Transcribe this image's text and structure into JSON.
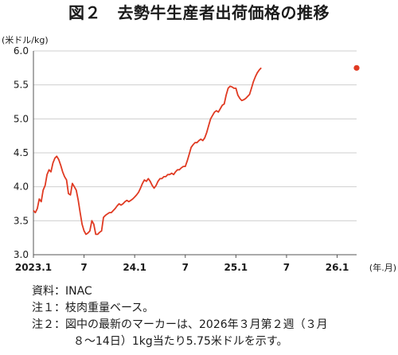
{
  "title": "図２　去勢牛生産者出荷価格の推移",
  "notes": {
    "source_label": "資料：",
    "source_text": "INAC",
    "note1_label": "注１：",
    "note1_text": "枝肉重量ベース。",
    "note2_label": "注２：",
    "note2_text": "図中の最新のマーカーは、2026年３月第２週（３月",
    "note2_cont": "８～14日）1kg当たり5.75米ドルを示す。"
  },
  "chart_data": {
    "type": "line",
    "title": "図２　去勢牛生産者出荷価格の推移",
    "xlabel": "(年.月)",
    "ylabel": "(米ドル/kg)",
    "ylim": [
      3.0,
      6.0
    ],
    "y_ticks": [
      "3.0",
      "3.5",
      "4.0",
      "4.5",
      "5.0",
      "5.5",
      "6.0"
    ],
    "x_unit": "weeks since 2023.1",
    "xlim": [
      0,
      166
    ],
    "x_ticks": [
      {
        "label": "2023.1",
        "x": 0
      },
      {
        "label": "7",
        "x": 26
      },
      {
        "label": "24.1",
        "x": 52
      },
      {
        "label": "7",
        "x": 78
      },
      {
        "label": "25.1",
        "x": 104
      },
      {
        "label": "7",
        "x": 130
      },
      {
        "label": "26.1",
        "x": 156
      }
    ],
    "grid": "horizontal",
    "line_color": "#e03a22",
    "marker": {
      "x": 166,
      "y": 5.75,
      "color": "#e03a22"
    },
    "series": [
      {
        "values": [
          [
            0,
            3.65
          ],
          [
            1,
            3.62
          ],
          [
            2,
            3.68
          ],
          [
            3,
            3.82
          ],
          [
            4,
            3.78
          ],
          [
            5,
            3.95
          ],
          [
            6,
            4.02
          ],
          [
            7,
            4.18
          ],
          [
            8,
            4.25
          ],
          [
            9,
            4.22
          ],
          [
            10,
            4.35
          ],
          [
            11,
            4.42
          ],
          [
            12,
            4.45
          ],
          [
            13,
            4.4
          ],
          [
            14,
            4.32
          ],
          [
            15,
            4.22
          ],
          [
            16,
            4.15
          ],
          [
            17,
            4.1
          ],
          [
            18,
            3.9
          ],
          [
            19,
            3.88
          ],
          [
            20,
            4.05
          ],
          [
            21,
            4.0
          ],
          [
            22,
            3.95
          ],
          [
            23,
            3.8
          ],
          [
            24,
            3.62
          ],
          [
            25,
            3.45
          ],
          [
            26,
            3.35
          ],
          [
            27,
            3.3
          ],
          [
            28,
            3.32
          ],
          [
            29,
            3.35
          ],
          [
            30,
            3.5
          ],
          [
            31,
            3.45
          ],
          [
            32,
            3.3
          ],
          [
            33,
            3.3
          ],
          [
            34,
            3.33
          ],
          [
            35,
            3.35
          ],
          [
            36,
            3.55
          ],
          [
            37,
            3.58
          ],
          [
            38,
            3.6
          ],
          [
            39,
            3.62
          ],
          [
            40,
            3.62
          ],
          [
            41,
            3.65
          ],
          [
            42,
            3.68
          ],
          [
            43,
            3.72
          ],
          [
            44,
            3.75
          ],
          [
            45,
            3.73
          ],
          [
            46,
            3.75
          ],
          [
            47,
            3.78
          ],
          [
            48,
            3.8
          ],
          [
            49,
            3.78
          ],
          [
            50,
            3.8
          ],
          [
            51,
            3.82
          ],
          [
            52,
            3.85
          ],
          [
            53,
            3.88
          ],
          [
            54,
            3.92
          ],
          [
            55,
            3.98
          ],
          [
            56,
            4.05
          ],
          [
            57,
            4.1
          ],
          [
            58,
            4.08
          ],
          [
            59,
            4.12
          ],
          [
            60,
            4.08
          ],
          [
            61,
            4.02
          ],
          [
            62,
            3.98
          ],
          [
            63,
            4.02
          ],
          [
            64,
            4.08
          ],
          [
            65,
            4.12
          ],
          [
            66,
            4.12
          ],
          [
            67,
            4.15
          ],
          [
            68,
            4.15
          ],
          [
            69,
            4.18
          ],
          [
            70,
            4.18
          ],
          [
            71,
            4.2
          ],
          [
            72,
            4.18
          ],
          [
            73,
            4.22
          ],
          [
            74,
            4.25
          ],
          [
            75,
            4.25
          ],
          [
            76,
            4.28
          ],
          [
            77,
            4.3
          ],
          [
            78,
            4.3
          ],
          [
            79,
            4.38
          ],
          [
            80,
            4.48
          ],
          [
            81,
            4.58
          ],
          [
            82,
            4.62
          ],
          [
            83,
            4.65
          ],
          [
            84,
            4.65
          ],
          [
            85,
            4.68
          ],
          [
            86,
            4.7
          ],
          [
            87,
            4.68
          ],
          [
            88,
            4.72
          ],
          [
            89,
            4.8
          ],
          [
            90,
            4.9
          ],
          [
            91,
            5.0
          ],
          [
            92,
            5.05
          ],
          [
            93,
            5.1
          ],
          [
            94,
            5.12
          ],
          [
            95,
            5.1
          ],
          [
            96,
            5.15
          ],
          [
            97,
            5.2
          ],
          [
            98,
            5.22
          ],
          [
            99,
            5.35
          ],
          [
            100,
            5.45
          ],
          [
            101,
            5.48
          ],
          [
            102,
            5.47
          ],
          [
            103,
            5.45
          ],
          [
            104,
            5.45
          ],
          [
            105,
            5.35
          ],
          [
            106,
            5.3
          ],
          [
            107,
            5.27
          ],
          [
            108,
            5.28
          ],
          [
            109,
            5.3
          ],
          [
            110,
            5.33
          ],
          [
            111,
            5.36
          ],
          [
            112,
            5.45
          ],
          [
            113,
            5.55
          ],
          [
            114,
            5.62
          ],
          [
            115,
            5.68
          ],
          [
            116,
            5.72
          ],
          [
            117,
            5.75
          ]
        ]
      }
    ]
  }
}
